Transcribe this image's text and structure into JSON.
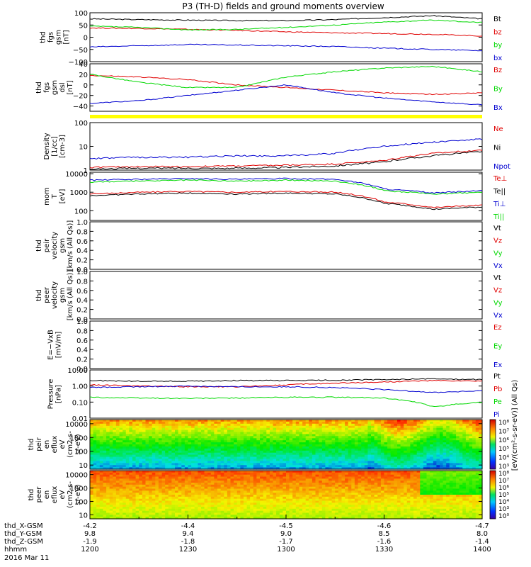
{
  "title": "P3 (TH-D) fields and ground moments overview",
  "date_label": "2016 Mar 11",
  "ephemeris": [
    {
      "name": "thd_X-GSM",
      "values": [
        "-4.2",
        "-4.4",
        "-4.5",
        "-4.6",
        "-4.7"
      ]
    },
    {
      "name": "thd_Y-GSM",
      "values": [
        "9.8",
        "9.4",
        "9.0",
        "8.5",
        "8.0"
      ]
    },
    {
      "name": "thd_Z-GSM",
      "values": [
        "-1.9",
        "-1.8",
        "-1.7",
        "-1.6",
        "-1.4"
      ]
    },
    {
      "name": "hhmm",
      "values": [
        "1200",
        "1230",
        "1300",
        "1330",
        "1400"
      ]
    }
  ],
  "colors": {
    "black": "#000000",
    "red": "#e00000",
    "green": "#00d800",
    "blue": "#0000d0",
    "yellow": "#ffff00"
  },
  "chart_data": [
    {
      "type": "line",
      "ylabel": [
        "thd",
        "fgs",
        "gsm",
        "[nT]"
      ],
      "yticks": [
        "100",
        "50",
        "0",
        "−50",
        "−100"
      ],
      "ylim": [
        -100,
        100
      ],
      "x": [
        1200,
        1215,
        1230,
        1245,
        1300,
        1315,
        1330,
        1345,
        1400
      ],
      "series": [
        {
          "name": "Bt",
          "color": "black",
          "values": [
            75,
            72,
            70,
            68,
            68,
            72,
            80,
            88,
            75
          ]
        },
        {
          "name": "bz",
          "color": "red",
          "values": [
            38,
            36,
            32,
            28,
            22,
            18,
            15,
            12,
            5
          ]
        },
        {
          "name": "by",
          "color": "green",
          "values": [
            45,
            40,
            30,
            32,
            40,
            50,
            62,
            70,
            60
          ]
        },
        {
          "name": "bx",
          "color": "blue",
          "values": [
            -40,
            -35,
            -30,
            -32,
            -35,
            -38,
            -45,
            -50,
            -55
          ]
        }
      ]
    },
    {
      "type": "line",
      "ylabel": [
        "thd",
        "fgs",
        "gsm",
        "dsl",
        "[nT]"
      ],
      "yticks": [
        "40",
        "20",
        "0",
        "−20",
        "−40"
      ],
      "ylim": [
        -50,
        40
      ],
      "x": [
        1200,
        1215,
        1230,
        1245,
        1300,
        1315,
        1330,
        1345,
        1400
      ],
      "series": [
        {
          "name": "Bz",
          "color": "red",
          "values": [
            18,
            15,
            10,
            0,
            -5,
            -10,
            -15,
            -18,
            -15
          ]
        },
        {
          "name": "By",
          "color": "green",
          "values": [
            20,
            5,
            -5,
            -5,
            15,
            25,
            32,
            35,
            25
          ]
        },
        {
          "name": "Bx",
          "color": "blue",
          "values": [
            -35,
            -30,
            -20,
            -10,
            0,
            -15,
            -25,
            -32,
            -38
          ]
        }
      ]
    },
    {
      "type": "line",
      "ylabel": [
        "Density",
        "[1/cc]",
        "[cm-3]"
      ],
      "scale": "log",
      "yticks": [
        "100",
        "10",
        "1"
      ],
      "ylim": [
        1,
        100
      ],
      "x": [
        1200,
        1215,
        1230,
        1245,
        1300,
        1315,
        1330,
        1345,
        1400
      ],
      "series": [
        {
          "name": "Ne",
          "color": "red",
          "values": [
            1.3,
            1.4,
            1.4,
            1.5,
            1.6,
            1.8,
            2.5,
            5,
            7
          ]
        },
        {
          "name": "Ni",
          "color": "black",
          "values": [
            1.1,
            1.2,
            1.2,
            1.2,
            1.3,
            1.5,
            2.2,
            4,
            6
          ]
        },
        {
          "name": "Npot",
          "color": "blue",
          "values": [
            3,
            3.5,
            3.5,
            4,
            4,
            5,
            10,
            15,
            20
          ]
        }
      ]
    },
    {
      "type": "line",
      "ylabel": [
        "mom",
        "T",
        "[eV]"
      ],
      "scale": "log",
      "yticks": [
        "10000",
        "1000",
        "100"
      ],
      "ylim": [
        30,
        12000
      ],
      "x": [
        1200,
        1215,
        1230,
        1245,
        1300,
        1315,
        1330,
        1345,
        1400
      ],
      "series": [
        {
          "name": "Te⊥",
          "color": "red",
          "values": [
            800,
            1000,
            1100,
            1000,
            1100,
            1000,
            300,
            150,
            200
          ]
        },
        {
          "name": "Te||",
          "color": "black",
          "values": [
            650,
            800,
            900,
            800,
            900,
            800,
            250,
            120,
            160
          ]
        },
        {
          "name": "Ti⊥",
          "color": "blue",
          "values": [
            4500,
            5000,
            5500,
            5000,
            5500,
            5000,
            1500,
            900,
            1200
          ]
        },
        {
          "name": "Ti||",
          "color": "green",
          "values": [
            3500,
            4000,
            4500,
            4000,
            4500,
            4000,
            1200,
            800,
            1000
          ]
        }
      ]
    },
    {
      "type": "line",
      "ylabel": [
        "thd",
        "peir",
        "velocity",
        "gsm",
        "[km/s (All Qs)]"
      ],
      "yticks": [
        "1.0",
        "0.8",
        "0.6",
        "0.4",
        "0.2",
        "0.0"
      ],
      "ylim": [
        0,
        1
      ],
      "series": [
        {
          "name": "Vt",
          "color": "black",
          "values": []
        },
        {
          "name": "Vz",
          "color": "red",
          "values": []
        },
        {
          "name": "Vy",
          "color": "green",
          "values": []
        },
        {
          "name": "Vx",
          "color": "blue",
          "values": []
        }
      ]
    },
    {
      "type": "line",
      "ylabel": [
        "thd",
        "peer",
        "velocity",
        "gsm",
        "[km/s (All Qs)]"
      ],
      "yticks": [
        "1.0",
        "0.8",
        "0.6",
        "0.4",
        "0.2",
        "0.0"
      ],
      "ylim": [
        0,
        1
      ],
      "series": [
        {
          "name": "Vt",
          "color": "black",
          "values": []
        },
        {
          "name": "Vz",
          "color": "red",
          "values": []
        },
        {
          "name": "Vy",
          "color": "green",
          "values": []
        },
        {
          "name": "Vx",
          "color": "blue",
          "values": []
        }
      ]
    },
    {
      "type": "line",
      "ylabel": [
        "E=−VxB",
        "[mV/m]"
      ],
      "yticks": [
        "1.0",
        "0.8",
        "0.6",
        "0.4",
        "0.2",
        "0.0"
      ],
      "ylim": [
        0,
        1
      ],
      "series": [
        {
          "name": "Ez",
          "color": "red",
          "values": []
        },
        {
          "name": "Ey",
          "color": "green",
          "values": []
        },
        {
          "name": "Ex",
          "color": "blue",
          "values": []
        }
      ]
    },
    {
      "type": "line",
      "ylabel": [
        "Pressure",
        "[nPa]"
      ],
      "scale": "log",
      "yticks": [
        "10.00",
        "1.00",
        "0.10",
        "0.01"
      ],
      "ylim": [
        0.01,
        10
      ],
      "x": [
        1200,
        1215,
        1230,
        1245,
        1300,
        1315,
        1330,
        1345,
        1400
      ],
      "series": [
        {
          "name": "Pt",
          "color": "black",
          "values": [
            2.2,
            2.0,
            2.0,
            2.2,
            2.2,
            2.3,
            2.5,
            2.8,
            2.5
          ]
        },
        {
          "name": "Pb",
          "color": "red",
          "values": [
            1.2,
            1.0,
            0.9,
            0.9,
            1.2,
            1.5,
            1.8,
            2.2,
            2.0
          ]
        },
        {
          "name": "Pe",
          "color": "green",
          "values": [
            0.2,
            0.18,
            0.17,
            0.18,
            0.2,
            0.2,
            0.18,
            0.05,
            0.1
          ]
        },
        {
          "name": "Pi",
          "color": "blue",
          "values": [
            0.8,
            0.9,
            1.0,
            0.9,
            0.9,
            0.8,
            0.6,
            0.4,
            0.5
          ]
        }
      ]
    },
    {
      "type": "heatmap",
      "ylabel": [
        "thd",
        "peir",
        "en",
        "eflux",
        "eV",
        "(cm2-s-",
        "sr-eV)"
      ],
      "scale": "log",
      "yticks": [
        "10000",
        "1000",
        "100",
        "10"
      ],
      "ylim": [
        5,
        20000
      ],
      "colorbar": [
        "10⁸",
        "10⁷",
        "10⁶",
        "10⁵",
        "10⁴",
        "10³"
      ],
      "colorbar_label": "[eV/(cm²-s-sr-eV)] (All Qs)"
    },
    {
      "type": "heatmap",
      "ylabel": [
        "thd",
        "peer",
        "en",
        "eflux",
        "eV",
        "(cm2-s-",
        "sr-eV)"
      ],
      "scale": "log",
      "yticks": [
        "10000",
        "1000",
        "100",
        "10"
      ],
      "ylim": [
        5,
        20000
      ],
      "colorbar": [
        "10⁸",
        "10⁷",
        "10⁶",
        "10⁵",
        "10⁴",
        "10³",
        "10⁰"
      ],
      "colorbar_label": "[eV/(cm²-s-sr-eV)] (All Qs)"
    }
  ]
}
